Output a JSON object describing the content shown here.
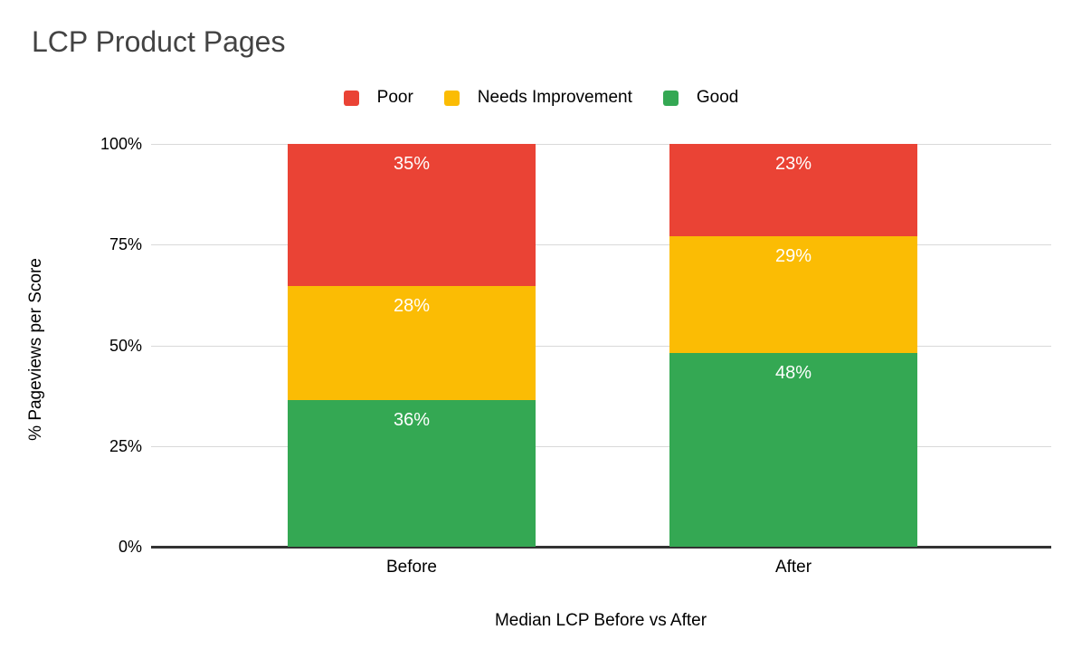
{
  "chart_data": {
    "type": "bar",
    "stacked": true,
    "percent_stacked": true,
    "title": "LCP Product Pages",
    "xlabel": "Median LCP Before vs After",
    "ylabel": "% Pageviews per Score",
    "categories": [
      "Before",
      "After"
    ],
    "series": [
      {
        "name": "Poor",
        "color": "#EA4335",
        "values": [
          35,
          23
        ]
      },
      {
        "name": "Needs Improvement",
        "color": "#FBBC04",
        "values": [
          28,
          29
        ]
      },
      {
        "name": "Good",
        "color": "#34A853",
        "values": [
          36,
          48
        ]
      }
    ],
    "y_ticks_top_to_bottom": [
      "100%",
      "75%",
      "50%",
      "25%",
      "0%"
    ],
    "ylim": [
      0,
      100
    ],
    "grid": true,
    "legend_position": "top-center",
    "data_label_format": "{value}%",
    "data_label_color": "#ffffff"
  },
  "style": {
    "background": "#ffffff",
    "title_color": "#434343",
    "text_color": "#000000",
    "gridline_color": "#d9d9d9",
    "axis_line_color": "#333333"
  }
}
